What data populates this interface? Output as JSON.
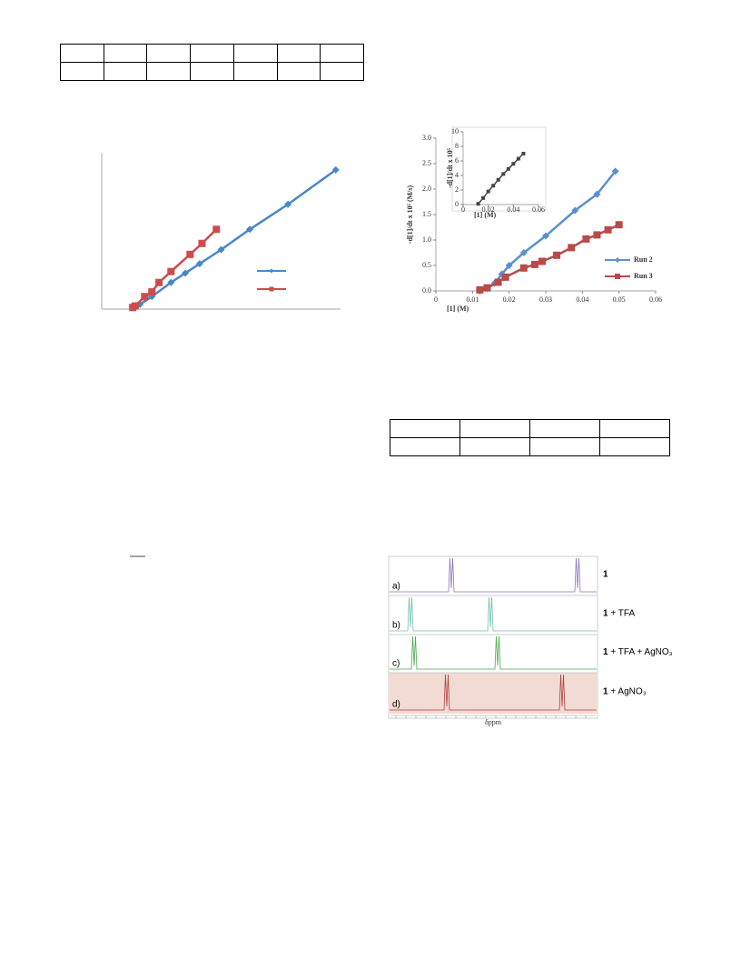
{
  "chart_data": [
    {
      "type": "line",
      "xlim": [
        0,
        1
      ],
      "ylim": [
        0,
        1
      ],
      "series": [
        {
          "color": "#4a86c8",
          "marker": "diamond",
          "x": [
            0.13,
            0.16,
            0.21,
            0.29,
            0.35,
            0.41,
            0.5,
            0.62,
            0.78,
            0.98
          ],
          "values": [
            0.01,
            0.03,
            0.08,
            0.17,
            0.23,
            0.29,
            0.38,
            0.51,
            0.67,
            0.89
          ]
        },
        {
          "color": "#cc4b4b",
          "marker": "square",
          "x": [
            0.13,
            0.14,
            0.18,
            0.21,
            0.24,
            0.29,
            0.37,
            0.42,
            0.48
          ],
          "values": [
            0.01,
            0.02,
            0.08,
            0.11,
            0.17,
            0.24,
            0.35,
            0.42,
            0.51
          ]
        }
      ]
    },
    {
      "type": "line",
      "x_label": "[1] (M)",
      "y_label": "-d[1]/dt x 10⁵ (M/s)",
      "xlim": [
        0,
        0.06
      ],
      "ylim": [
        0,
        3.0
      ],
      "xticks": [
        0,
        0.01,
        0.02,
        0.03,
        0.04,
        0.05,
        0.06
      ],
      "yticks": [
        {
          "value": 0,
          "label": "0.0"
        },
        {
          "value": 0.5,
          "label": "0.5"
        },
        {
          "value": 1,
          "label": "1.0"
        },
        {
          "value": 1.5,
          "label": "1.5"
        },
        {
          "value": 2,
          "label": "2.0"
        },
        {
          "value": 2.5,
          "label": "2.5"
        },
        {
          "value": 3,
          "label": "3.0"
        }
      ],
      "legend": "lower right",
      "series": [
        {
          "name": "Run 2",
          "color": "#5b8fd0",
          "marker": "diamond",
          "x": [
            0.012,
            0.014,
            0.016,
            0.018,
            0.02,
            0.024,
            0.03,
            0.038,
            0.044,
            0.049
          ],
          "values": [
            0.0,
            0.05,
            0.15,
            0.33,
            0.5,
            0.75,
            1.08,
            1.58,
            1.9,
            2.35
          ]
        },
        {
          "name": "Run 3",
          "color": "#b84a4a",
          "marker": "square",
          "x": [
            0.012,
            0.014,
            0.017,
            0.019,
            0.024,
            0.027,
            0.029,
            0.033,
            0.037,
            0.041,
            0.044,
            0.047,
            0.05
          ],
          "values": [
            0.02,
            0.06,
            0.17,
            0.27,
            0.45,
            0.52,
            0.58,
            0.7,
            0.85,
            1.02,
            1.1,
            1.2,
            1.3
          ]
        }
      ]
    },
    {
      "type": "line",
      "x_label": "[1] (M)",
      "y_label": "-d[1]/dt x 10⁵",
      "xlim": [
        0,
        0.06
      ],
      "ylim": [
        0,
        10
      ],
      "xticks": [
        0,
        0.02,
        0.04,
        0.06
      ],
      "yticks": [
        0,
        2,
        4,
        6,
        8,
        10
      ],
      "series": [
        {
          "color": "#444444",
          "marker": "square",
          "x": [
            0.012,
            0.016,
            0.02,
            0.024,
            0.028,
            0.032,
            0.036,
            0.04,
            0.044,
            0.048
          ],
          "values": [
            0.1,
            0.9,
            1.8,
            2.6,
            3.4,
            4.2,
            4.9,
            5.6,
            6.3,
            7.0
          ]
        }
      ]
    }
  ],
  "nmr": {
    "axis_label": "δppm",
    "panels": [
      {
        "letter": "a)",
        "bold": "1",
        "rest": ""
      },
      {
        "letter": "b)",
        "bold": "1",
        "rest": " + TFA"
      },
      {
        "letter": "c)",
        "bold": "1",
        "rest": " + TFA + AgNO₃"
      },
      {
        "letter": "d)",
        "bold": "1",
        "rest": " + AgNO₃"
      }
    ]
  }
}
